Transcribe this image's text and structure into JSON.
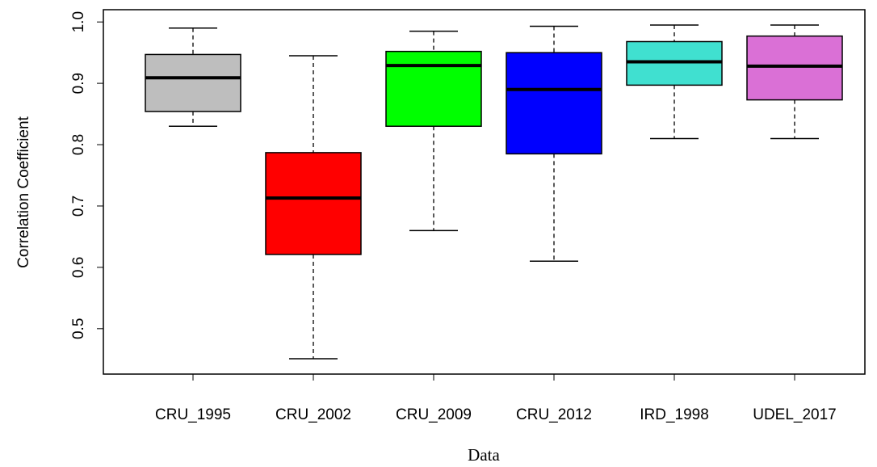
{
  "chart_data": {
    "type": "box",
    "x_label": "Data",
    "y_label": "Correlation Coefficient",
    "categories": [
      "CRU_1995",
      "CRU_2002",
      "CRU_2009",
      "CRU_2012",
      "IRD_1998",
      "UDEL_2017"
    ],
    "colors": [
      "#bebebe",
      "#ff0000",
      "#00ff00",
      "#0000ff",
      "#40e0d0",
      "#da70d6"
    ],
    "min": [
      0.83,
      0.451,
      0.66,
      0.61,
      0.81,
      0.81
    ],
    "q1": [
      0.854,
      0.621,
      0.83,
      0.785,
      0.897,
      0.873
    ],
    "median": [
      0.909,
      0.713,
      0.929,
      0.89,
      0.935,
      0.928
    ],
    "q3": [
      0.947,
      0.787,
      0.952,
      0.95,
      0.968,
      0.977
    ],
    "max": [
      0.99,
      0.945,
      0.985,
      0.993,
      0.995,
      0.995
    ],
    "ylim": [
      0.426,
      1.02
    ],
    "yticks": [
      0.5,
      0.6,
      0.7,
      0.8,
      0.9,
      {
        "value": 1,
        "label": "1.0"
      }
    ]
  }
}
